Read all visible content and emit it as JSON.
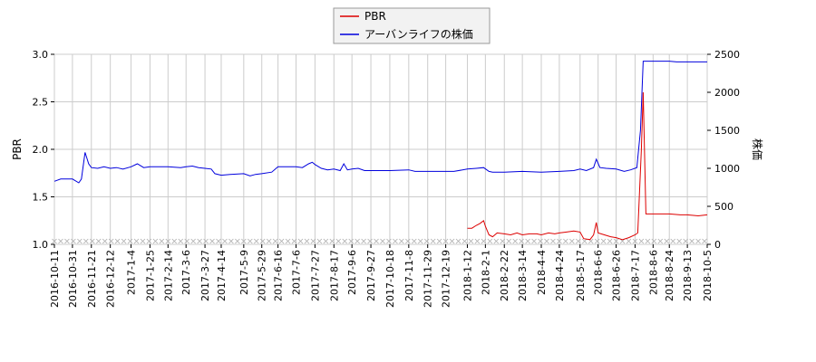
{
  "chart_data": {
    "type": "line",
    "title": "",
    "xlabel": "",
    "ylabel_left": "PBR",
    "ylabel_right": "株価",
    "ylim_left": [
      1.0,
      3.0
    ],
    "ylim_right": [
      0,
      2500
    ],
    "yticks_left": [
      "1.0",
      "1.5",
      "2.0",
      "2.5",
      "3.0"
    ],
    "yticks_right": [
      "0",
      "500",
      "1000",
      "1500",
      "2000",
      "2500"
    ],
    "x_start": "2016-10-11",
    "x_end": "2018-10-05",
    "xticks": [
      "2016-10-11",
      "2016-10-31",
      "2016-11-21",
      "2016-12-12",
      "2017-1-4",
      "2017-1-25",
      "2017-2-14",
      "2017-3-6",
      "2017-3-27",
      "2017-4-14",
      "2017-5-9",
      "2017-5-29",
      "2017-6-16",
      "2017-7-6",
      "2017-7-27",
      "2017-8-17",
      "2017-9-6",
      "2017-9-27",
      "2017-10-18",
      "2017-11-8",
      "2017-11-29",
      "2017-12-19",
      "2018-1-12",
      "2018-2-1",
      "2018-2-22",
      "2018-3-14",
      "2018-4-4",
      "2018-4-24",
      "2018-5-17",
      "2018-6-6",
      "2018-6-26",
      "2018-7-17",
      "2018-8-6",
      "2018-8-24",
      "2018-9-13",
      "2018-10-5"
    ],
    "grid": true,
    "legend_position": "top-center",
    "series": [
      {
        "name": "PBR",
        "color": "#dd0000",
        "axis": "left",
        "points": [
          [
            "2018-1-12",
            1.17
          ],
          [
            "2018-1-17",
            1.17
          ],
          [
            "2018-1-22",
            1.2
          ],
          [
            "2018-1-26",
            1.22
          ],
          [
            "2018-1-30",
            1.25
          ],
          [
            "2018-2-1",
            1.19
          ],
          [
            "2018-2-5",
            1.1
          ],
          [
            "2018-2-9",
            1.08
          ],
          [
            "2018-2-14",
            1.12
          ],
          [
            "2018-2-22",
            1.11
          ],
          [
            "2018-3-1",
            1.1
          ],
          [
            "2018-3-8",
            1.12
          ],
          [
            "2018-3-14",
            1.1
          ],
          [
            "2018-3-22",
            1.11
          ],
          [
            "2018-3-30",
            1.11
          ],
          [
            "2018-4-4",
            1.1
          ],
          [
            "2018-4-12",
            1.12
          ],
          [
            "2018-4-19",
            1.11
          ],
          [
            "2018-4-24",
            1.12
          ],
          [
            "2018-5-2",
            1.13
          ],
          [
            "2018-5-10",
            1.14
          ],
          [
            "2018-5-17",
            1.13
          ],
          [
            "2018-5-21",
            1.06
          ],
          [
            "2018-5-28",
            1.05
          ],
          [
            "2018-6-1",
            1.1
          ],
          [
            "2018-6-4",
            1.23
          ],
          [
            "2018-6-6",
            1.12
          ],
          [
            "2018-6-13",
            1.1
          ],
          [
            "2018-6-20",
            1.08
          ],
          [
            "2018-6-26",
            1.07
          ],
          [
            "2018-7-3",
            1.05
          ],
          [
            "2018-7-10",
            1.07
          ],
          [
            "2018-7-17",
            1.1
          ],
          [
            "2018-7-20",
            1.12
          ],
          [
            "2018-7-24",
            2.0
          ],
          [
            "2018-7-26",
            2.6
          ],
          [
            "2018-7-29",
            1.32
          ],
          [
            "2018-8-6",
            1.32
          ],
          [
            "2018-8-24",
            1.32
          ],
          [
            "2018-9-5",
            1.31
          ],
          [
            "2018-9-13",
            1.31
          ],
          [
            "2018-9-25",
            1.3
          ],
          [
            "2018-10-5",
            1.31
          ]
        ]
      },
      {
        "name": "アーバンライフの株価",
        "color": "#0000dd",
        "axis": "right",
        "points": [
          [
            "2016-10-11",
            830
          ],
          [
            "2016-10-18",
            860
          ],
          [
            "2016-10-24",
            860
          ],
          [
            "2016-10-31",
            860
          ],
          [
            "2016-11-7",
            810
          ],
          [
            "2016-11-10",
            860
          ],
          [
            "2016-11-14",
            1210
          ],
          [
            "2016-11-18",
            1060
          ],
          [
            "2016-11-21",
            1010
          ],
          [
            "2016-11-28",
            1000
          ],
          [
            "2016-12-5",
            1020
          ],
          [
            "2016-12-12",
            1000
          ],
          [
            "2016-12-19",
            1010
          ],
          [
            "2016-12-26",
            990
          ],
          [
            "2017-1-4",
            1020
          ],
          [
            "2017-1-11",
            1060
          ],
          [
            "2017-1-18",
            1010
          ],
          [
            "2017-1-25",
            1020
          ],
          [
            "2017-2-1",
            1020
          ],
          [
            "2017-2-14",
            1020
          ],
          [
            "2017-2-28",
            1010
          ],
          [
            "2017-3-6",
            1020
          ],
          [
            "2017-3-13",
            1030
          ],
          [
            "2017-3-20",
            1010
          ],
          [
            "2017-3-27",
            1000
          ],
          [
            "2017-4-3",
            990
          ],
          [
            "2017-4-7",
            930
          ],
          [
            "2017-4-14",
            910
          ],
          [
            "2017-4-24",
            920
          ],
          [
            "2017-5-9",
            930
          ],
          [
            "2017-5-16",
            900
          ],
          [
            "2017-5-22",
            920
          ],
          [
            "2017-5-29",
            930
          ],
          [
            "2017-6-9",
            950
          ],
          [
            "2017-6-16",
            1020
          ],
          [
            "2017-6-23",
            1020
          ],
          [
            "2017-7-6",
            1020
          ],
          [
            "2017-7-13",
            1010
          ],
          [
            "2017-7-20",
            1060
          ],
          [
            "2017-7-24",
            1080
          ],
          [
            "2017-7-27",
            1050
          ],
          [
            "2017-8-3",
            1000
          ],
          [
            "2017-8-10",
            980
          ],
          [
            "2017-8-17",
            990
          ],
          [
            "2017-8-24",
            970
          ],
          [
            "2017-8-28",
            1060
          ],
          [
            "2017-9-1",
            980
          ],
          [
            "2017-9-6",
            990
          ],
          [
            "2017-9-13",
            1000
          ],
          [
            "2017-9-20",
            970
          ],
          [
            "2017-9-27",
            970
          ],
          [
            "2017-10-18",
            970
          ],
          [
            "2017-11-8",
            980
          ],
          [
            "2017-11-15",
            960
          ],
          [
            "2017-11-29",
            960
          ],
          [
            "2017-12-19",
            960
          ],
          [
            "2017-12-28",
            960
          ],
          [
            "2018-1-12",
            990
          ],
          [
            "2018-1-22",
            1000
          ],
          [
            "2018-1-30",
            1010
          ],
          [
            "2018-2-5",
            960
          ],
          [
            "2018-2-9",
            950
          ],
          [
            "2018-2-22",
            950
          ],
          [
            "2018-3-14",
            960
          ],
          [
            "2018-4-4",
            950
          ],
          [
            "2018-4-24",
            960
          ],
          [
            "2018-5-10",
            970
          ],
          [
            "2018-5-17",
            990
          ],
          [
            "2018-5-24",
            970
          ],
          [
            "2018-6-1",
            1010
          ],
          [
            "2018-6-4",
            1120
          ],
          [
            "2018-6-8",
            1010
          ],
          [
            "2018-6-15",
            1000
          ],
          [
            "2018-6-26",
            990
          ],
          [
            "2018-7-5",
            960
          ],
          [
            "2018-7-12",
            980
          ],
          [
            "2018-7-19",
            1010
          ],
          [
            "2018-7-23",
            1500
          ],
          [
            "2018-7-26",
            2410
          ],
          [
            "2018-8-6",
            2410
          ],
          [
            "2018-8-24",
            2410
          ],
          [
            "2018-9-1",
            2400
          ],
          [
            "2018-9-13",
            2400
          ],
          [
            "2018-10-5",
            2400
          ]
        ]
      }
    ]
  }
}
